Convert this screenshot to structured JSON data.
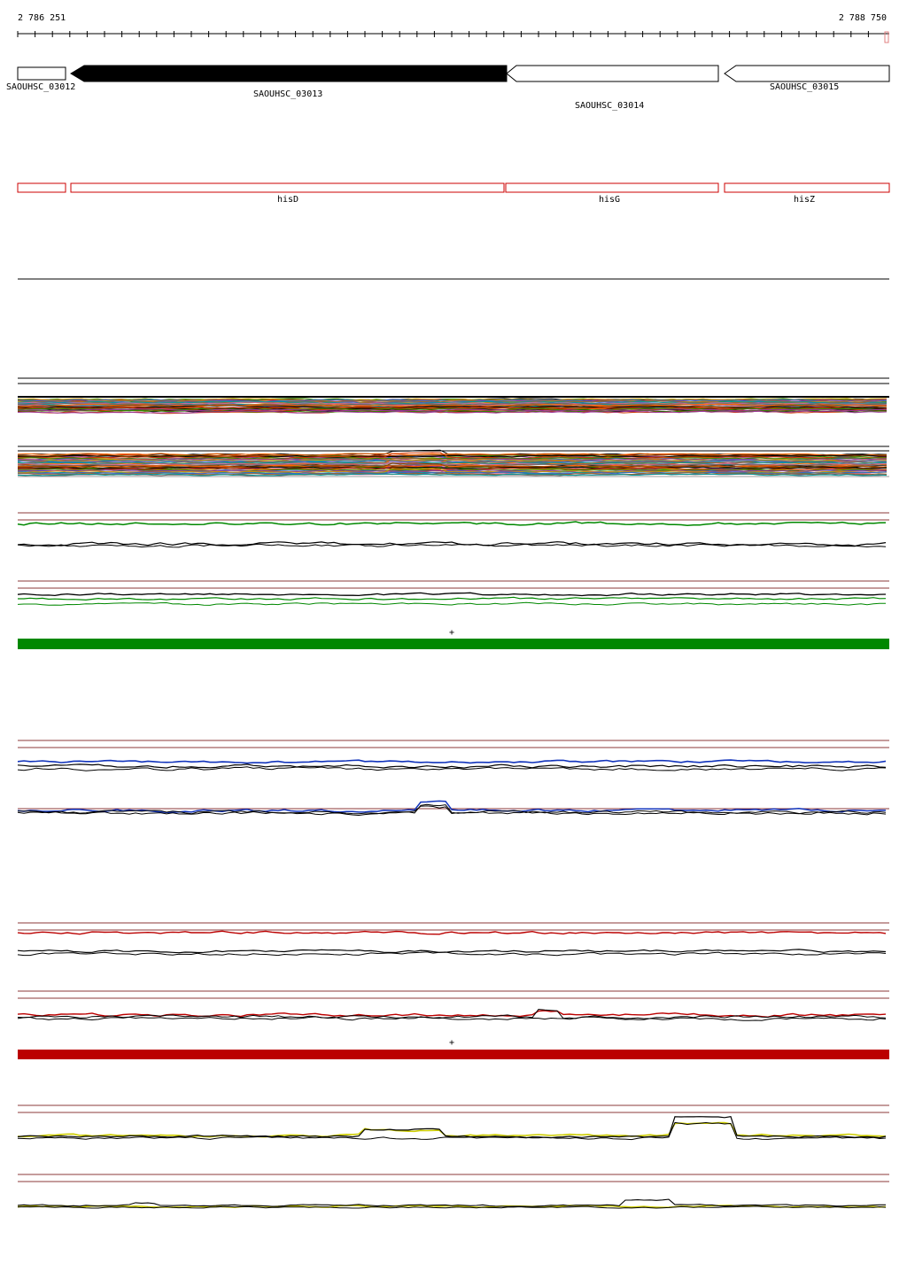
{
  "ruler": {
    "start_label": "2 786 251",
    "end_label": "2 788 750",
    "start": 2786251,
    "end": 2788750
  },
  "genes": [
    {
      "name": "SAOUHSC_03012",
      "start": 2786251,
      "end": 2786390,
      "strand": "-",
      "selected": false
    },
    {
      "name": "SAOUHSC_03013",
      "start": 2786400,
      "end": 2787652,
      "strand": "-",
      "selected": true
    },
    {
      "name": "SAOUHSC_03014",
      "start": 2787652,
      "end": 2788263,
      "strand": "-",
      "selected": false
    },
    {
      "name": "SAOUHSC_03015",
      "start": 2788280,
      "end": 2788750,
      "strand": "-",
      "selected": false
    }
  ],
  "features": [
    {
      "name": "",
      "start": 2786251,
      "end": 2786390
    },
    {
      "name": "hisD",
      "start": 2786400,
      "end": 2787648
    },
    {
      "name": "hisG",
      "start": 2787655,
      "end": 2788263
    },
    {
      "name": "hisZ",
      "start": 2788280,
      "end": 2788750
    }
  ],
  "strand_markers": [
    "+",
    "+"
  ],
  "colors": {
    "gene_selected": "#000000",
    "feature_outline": "#cc0000",
    "band_green": "#008800",
    "band_red": "#bb0000",
    "series_green": "#008800",
    "series_blue": "#1133bb",
    "series_red": "#bb0000",
    "series_yellow": "#cccc00",
    "reference_line": "#8b3a3a"
  }
}
